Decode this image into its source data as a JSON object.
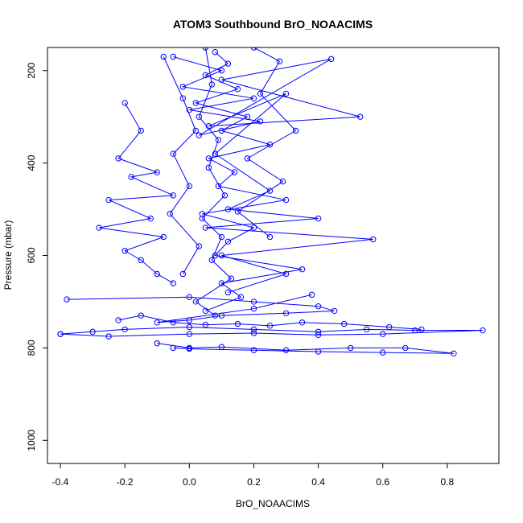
{
  "chart_data": {
    "type": "line",
    "title": "ATOM3 Southbound BrO_NOAACIMS",
    "xlabel": "BrO_NOAACIMS",
    "ylabel": "Pressure (mbar)",
    "xlim": [
      -0.44,
      0.96
    ],
    "ylim": [
      1050,
      150
    ],
    "y_reversed": true,
    "xticks": [
      -0.4,
      -0.2,
      0.0,
      0.2,
      0.4,
      0.6,
      0.8
    ],
    "xtick_labels": [
      "-0.4",
      "-0.2",
      "0.0",
      "0.2",
      "0.4",
      "0.6",
      "0.8"
    ],
    "yticks": [
      200,
      400,
      600,
      800,
      1000
    ],
    "ytick_labels": [
      "200",
      "400",
      "600",
      "800",
      "1000"
    ],
    "grid": false,
    "legend": "none",
    "series_color": "#0000ff",
    "marker": "open-circle",
    "series": [
      {
        "x": [
          0.08,
          0.12,
          0.05,
          0.15,
          0.02,
          0.18,
          0.1,
          0.25,
          0.06,
          0.14,
          0.09,
          0.3,
          0.04,
          0.2,
          0.12,
          0.08,
          0.35,
          0.1,
          0.16,
          0.05
        ],
        "y": [
          160,
          185,
          210,
          240,
          270,
          300,
          330,
          360,
          390,
          420,
          450,
          480,
          510,
          540,
          570,
          600,
          630,
          660,
          690,
          720
        ]
      },
      {
        "x": [
          -0.05,
          0.1,
          -0.02,
          0.2,
          0.0,
          0.22,
          0.03,
          0.44,
          0.1,
          0.53,
          0.06,
          0.3,
          0.08,
          0.25,
          0.12,
          0.4,
          0.05,
          0.57,
          0.1,
          0.3,
          0.12
        ],
        "y": [
          170,
          200,
          235,
          260,
          285,
          310,
          340,
          175,
          220,
          300,
          320,
          250,
          380,
          460,
          500,
          520,
          540,
          565,
          600,
          640,
          680
        ]
      },
      {
        "x": [
          -0.2,
          -0.15,
          -0.22,
          -0.1,
          -0.18,
          -0.05,
          -0.25,
          -0.12,
          -0.28,
          -0.08,
          -0.2,
          -0.15,
          -0.1,
          -0.05
        ],
        "y": [
          270,
          330,
          390,
          420,
          430,
          470,
          480,
          520,
          540,
          560,
          590,
          610,
          640,
          660
        ]
      },
      {
        "x": [
          -0.38,
          0.0,
          0.2,
          0.4,
          0.45,
          0.3,
          0.1,
          0.0,
          -0.1,
          0.2,
          0.38
        ],
        "y": [
          695,
          690,
          700,
          710,
          720,
          725,
          730,
          740,
          745,
          715,
          685
        ]
      },
      {
        "x": [
          -0.4,
          -0.3,
          -0.2,
          0.0,
          0.2,
          0.4,
          0.55,
          0.7,
          0.91,
          0.6,
          0.4,
          0.2,
          0.0,
          -0.25,
          -0.4
        ],
        "y": [
          770,
          765,
          760,
          755,
          760,
          765,
          760,
          762,
          762,
          770,
          772,
          768,
          770,
          775,
          770
        ]
      },
      {
        "x": [
          -0.1,
          0.0,
          0.1,
          0.3,
          0.5,
          0.67,
          0.82,
          0.6,
          0.4,
          0.2,
          0.0,
          -0.05
        ],
        "y": [
          790,
          800,
          798,
          805,
          800,
          800,
          812,
          810,
          808,
          805,
          802,
          800
        ]
      },
      {
        "x": [
          -0.22,
          -0.15,
          -0.05,
          0.05,
          0.15,
          0.25,
          0.35,
          0.48,
          0.62,
          0.72
        ],
        "y": [
          740,
          730,
          745,
          750,
          748,
          752,
          745,
          748,
          755,
          760
        ]
      },
      {
        "x": [
          0.05,
          0.07,
          0.03,
          0.09,
          0.06,
          0.11,
          0.04,
          0.1,
          0.07,
          0.13,
          0.02,
          0.08
        ],
        "y": [
          150,
          230,
          300,
          350,
          410,
          470,
          520,
          560,
          610,
          650,
          700,
          730
        ]
      },
      {
        "x": [
          0.2,
          0.28,
          0.22,
          0.33,
          0.18,
          0.29,
          0.15,
          0.25
        ],
        "y": [
          150,
          180,
          250,
          330,
          390,
          440,
          505,
          560
        ]
      },
      {
        "x": [
          -0.08,
          -0.02,
          0.02,
          -0.05,
          0.0,
          -0.06,
          0.03,
          -0.02
        ],
        "y": [
          170,
          260,
          330,
          380,
          450,
          510,
          580,
          640
        ]
      }
    ]
  }
}
